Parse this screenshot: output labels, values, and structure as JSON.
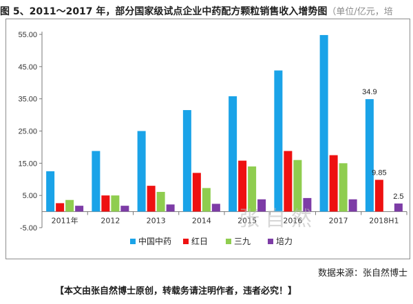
{
  "title": "图 5、2011～2017 年，部分国家级试点企业中药配方颗粒销售收入增势图",
  "title_unit": "（单位/亿元，培",
  "source": "数据来源：张自然博士",
  "footer": "【本文由张自然博士原创，转载务请注明作者，违者必究！】",
  "watermark": "张自然",
  "chart_data": {
    "type": "bar",
    "categories": [
      "2011年",
      "2012",
      "2013",
      "2014",
      "2015",
      "2016",
      "2017",
      "2018H1"
    ],
    "series": [
      {
        "name": "中国中药",
        "color": "#1aa3e8",
        "values": [
          12.5,
          18.8,
          25,
          31.5,
          35.8,
          43.8,
          54.8,
          34.9
        ]
      },
      {
        "name": "红日",
        "color": "#ee1111",
        "values": [
          2.6,
          5,
          8,
          12,
          15.8,
          18.8,
          17.5,
          9.85
        ]
      },
      {
        "name": "三九",
        "color": "#8fcd4f",
        "values": [
          3.6,
          5,
          6.1,
          7.3,
          14,
          16,
          15,
          null
        ]
      },
      {
        "name": "培力",
        "color": "#7d3ca6",
        "values": [
          1.8,
          1.8,
          2.2,
          2.4,
          3.8,
          4.2,
          3.8,
          2.5
        ]
      }
    ],
    "data_labels": [
      {
        "series": 0,
        "category": 7,
        "text": "34.9"
      },
      {
        "series": 1,
        "category": 7,
        "text": "9.85"
      },
      {
        "series": 3,
        "category": 7,
        "text": "2.5"
      }
    ],
    "y_ticks": [
      "55.00",
      "45.00",
      "35.00",
      "25.00",
      "15.00",
      "5.00",
      "-5.00"
    ],
    "y_tick_values": [
      55,
      45,
      35,
      25,
      15,
      5,
      -5
    ],
    "ylim": [
      -5,
      55
    ],
    "grid": false,
    "legend_position": "bottom"
  }
}
